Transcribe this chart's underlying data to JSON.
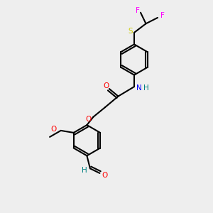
{
  "background_color": "#eeeeee",
  "bond_color": "#000000",
  "bond_lw": 1.5,
  "colors": {
    "F": "#ff00ff",
    "S": "#cccc00",
    "N": "#0000ff",
    "O": "#ff0000",
    "H": "#008080",
    "C": "#000000"
  },
  "figsize": [
    3.0,
    3.0
  ],
  "dpi": 100
}
